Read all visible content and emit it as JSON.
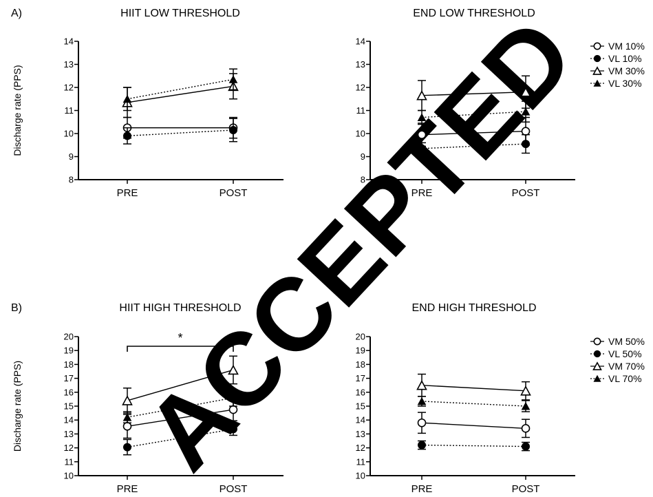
{
  "watermark": "ACCEPTED",
  "chart_data": [
    {
      "type": "line",
      "panel_label": "A)",
      "title": "HIIT LOW THRESHOLD",
      "ylabel": "Discharge rate (PPS)",
      "categories": [
        "PRE",
        "POST"
      ],
      "ylim": [
        8,
        14
      ],
      "yticks": [
        8,
        9,
        10,
        11,
        12,
        13,
        14
      ],
      "series": [
        {
          "name": "VM 10%",
          "marker": "circle-open",
          "line": "solid",
          "values": [
            10.25,
            10.25
          ],
          "error": [
            0.45,
            0.45
          ]
        },
        {
          "name": "VL 10%",
          "marker": "circle-filled",
          "line": "dotted",
          "values": [
            9.9,
            10.15
          ],
          "error": [
            0.35,
            0.5
          ]
        },
        {
          "name": "VM 30%",
          "marker": "triangle-open",
          "line": "solid",
          "values": [
            11.35,
            12.05
          ],
          "error": [
            0.65,
            0.55
          ]
        },
        {
          "name": "VL 30%",
          "marker": "triangle-filled",
          "line": "dotted",
          "values": [
            11.5,
            12.35
          ],
          "error": [
            0.5,
            0.45
          ]
        }
      ]
    },
    {
      "type": "line",
      "title": "END LOW THRESHOLD",
      "categories": [
        "PRE",
        "POST"
      ],
      "ylim": [
        8,
        14
      ],
      "yticks": [
        8,
        9,
        10,
        11,
        12,
        13,
        14
      ],
      "legend": [
        "VM 10%",
        "VL 10%",
        "VM 30%",
        "VL 30%"
      ],
      "legend_placement": "right",
      "series": [
        {
          "name": "VM 10%",
          "marker": "circle-open",
          "line": "solid",
          "values": [
            9.95,
            10.1
          ],
          "error": [
            0.5,
            0.6
          ]
        },
        {
          "name": "VL 10%",
          "marker": "circle-filled",
          "line": "dotted",
          "values": [
            9.35,
            9.55
          ],
          "error": [
            0.25,
            0.4
          ]
        },
        {
          "name": "VM 30%",
          "marker": "triangle-open",
          "line": "solid",
          "values": [
            11.65,
            11.8
          ],
          "error": [
            0.65,
            0.7
          ]
        },
        {
          "name": "VL 30%",
          "marker": "triangle-filled",
          "line": "dotted",
          "values": [
            10.7,
            10.95
          ],
          "error": [
            0.3,
            0.45
          ]
        }
      ]
    },
    {
      "type": "line",
      "panel_label": "B)",
      "title": "HIIT HIGH THRESHOLD",
      "ylabel": "Discharge rate (PPS)",
      "categories": [
        "PRE",
        "POST"
      ],
      "ylim": [
        10,
        20
      ],
      "yticks": [
        10,
        11,
        12,
        13,
        14,
        15,
        16,
        17,
        18,
        19,
        20
      ],
      "significance": "*",
      "series": [
        {
          "name": "VM 50%",
          "marker": "circle-open",
          "line": "solid",
          "values": [
            13.55,
            14.75
          ],
          "error": [
            0.85,
            0.8
          ]
        },
        {
          "name": "VL 50%",
          "marker": "circle-filled",
          "line": "dotted",
          "values": [
            12.05,
            13.35
          ],
          "error": [
            0.55,
            0.45
          ]
        },
        {
          "name": "VM 70%",
          "marker": "triangle-open",
          "line": "solid",
          "values": [
            15.4,
            17.6
          ],
          "error": [
            0.9,
            1.0
          ]
        },
        {
          "name": "VL 70%",
          "marker": "triangle-filled",
          "line": "dotted",
          "values": [
            14.2,
            15.6
          ],
          "error": [
            0.4,
            0.6
          ]
        }
      ]
    },
    {
      "type": "line",
      "title": "END HIGH THRESHOLD",
      "categories": [
        "PRE",
        "POST"
      ],
      "ylim": [
        10,
        20
      ],
      "yticks": [
        10,
        11,
        12,
        13,
        14,
        15,
        16,
        17,
        18,
        19,
        20
      ],
      "legend": [
        "VM 50%",
        "VL 50%",
        "VM 70%",
        "VL 70%"
      ],
      "legend_placement": "right",
      "series": [
        {
          "name": "VM 50%",
          "marker": "circle-open",
          "line": "solid",
          "values": [
            13.8,
            13.4
          ],
          "error": [
            0.75,
            0.65
          ]
        },
        {
          "name": "VL 50%",
          "marker": "circle-filled",
          "line": "dotted",
          "values": [
            12.2,
            12.1
          ],
          "error": [
            0.3,
            0.3
          ]
        },
        {
          "name": "VM 70%",
          "marker": "triangle-open",
          "line": "solid",
          "values": [
            16.5,
            16.1
          ],
          "error": [
            0.8,
            0.65
          ]
        },
        {
          "name": "VL 70%",
          "marker": "triangle-filled",
          "line": "dotted",
          "values": [
            15.35,
            15.0
          ],
          "error": [
            0.35,
            0.4
          ]
        }
      ]
    }
  ]
}
